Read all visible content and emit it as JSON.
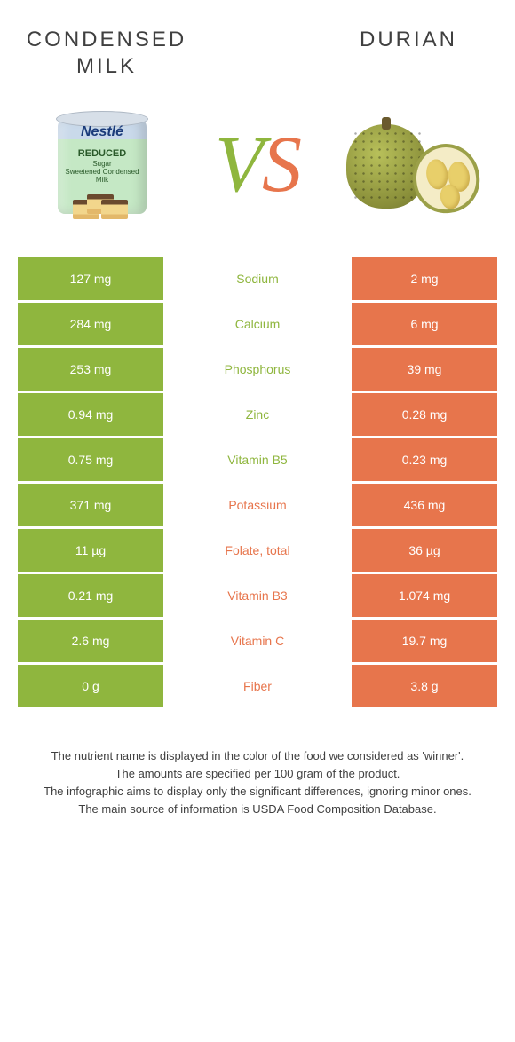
{
  "foods": {
    "left": {
      "title": "CONDENSED MILK",
      "color": "#8fb63e"
    },
    "right": {
      "title": "DURIAN",
      "color": "#e7754c"
    }
  },
  "vs_label": "VS",
  "rows": [
    {
      "name": "Sodium",
      "left": "127 mg",
      "right": "2 mg",
      "winner": "left"
    },
    {
      "name": "Calcium",
      "left": "284 mg",
      "right": "6 mg",
      "winner": "left"
    },
    {
      "name": "Phosphorus",
      "left": "253 mg",
      "right": "39 mg",
      "winner": "left"
    },
    {
      "name": "Zinc",
      "left": "0.94 mg",
      "right": "0.28 mg",
      "winner": "left"
    },
    {
      "name": "Vitamin B5",
      "left": "0.75 mg",
      "right": "0.23 mg",
      "winner": "left"
    },
    {
      "name": "Potassium",
      "left": "371 mg",
      "right": "436 mg",
      "winner": "right"
    },
    {
      "name": "Folate, total",
      "left": "11 µg",
      "right": "36 µg",
      "winner": "right"
    },
    {
      "name": "Vitamin B3",
      "left": "0.21 mg",
      "right": "1.074 mg",
      "winner": "right"
    },
    {
      "name": "Vitamin C",
      "left": "2.6 mg",
      "right": "19.7 mg",
      "winner": "right"
    },
    {
      "name": "Fiber",
      "left": "0 g",
      "right": "3.8 g",
      "winner": "right"
    }
  ],
  "footnotes": [
    "The nutrient name is displayed in the color of the food we considered as 'winner'.",
    "The amounts are specified per 100 gram of the product.",
    "The infographic aims to display only the significant differences, ignoring minor ones.",
    "The main source of information is USDA Food Composition Database."
  ],
  "can": {
    "brand": "Nestlé",
    "line1": "REDUCED",
    "line2": "Sugar",
    "line3": "Sweetened Condensed Milk"
  }
}
